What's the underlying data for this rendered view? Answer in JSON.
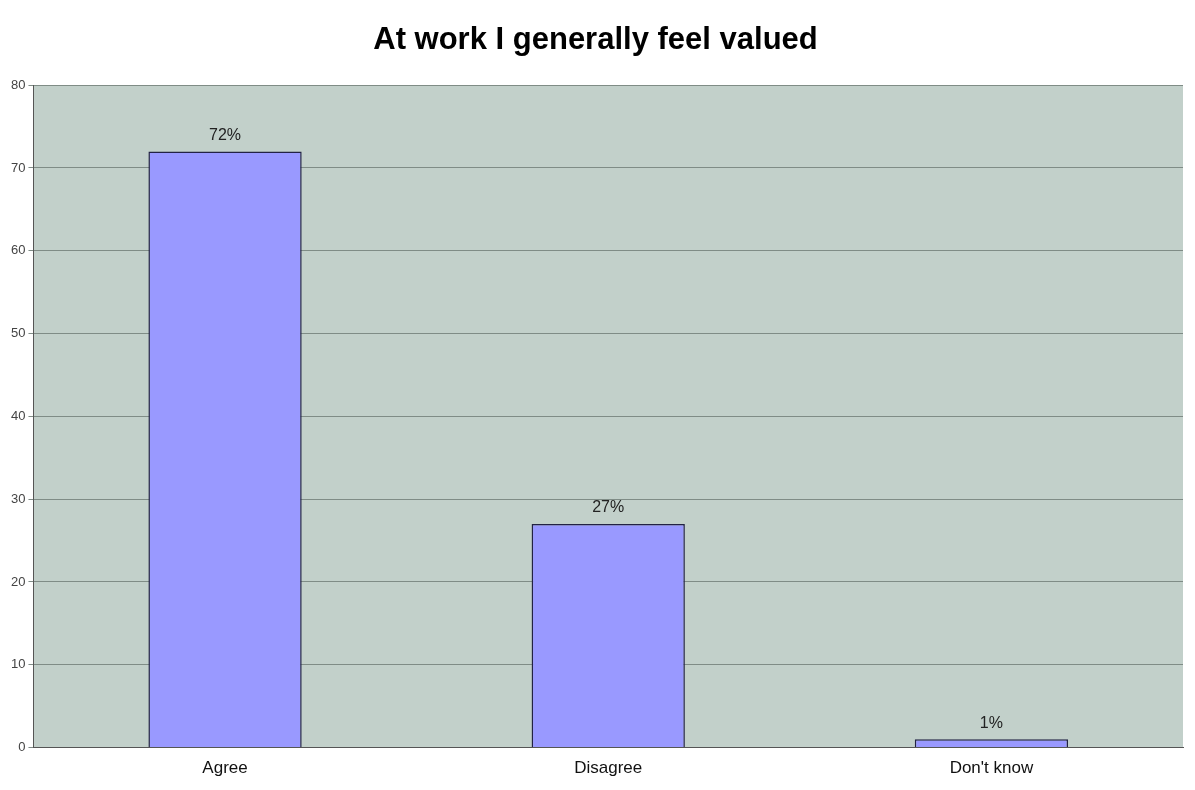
{
  "chart_data": {
    "type": "bar",
    "title": "At work I generally feel valued",
    "categories": [
      "Agree",
      "Disagree",
      "Don't know"
    ],
    "values": [
      72,
      27,
      1
    ],
    "value_labels": [
      "72%",
      "27%",
      "1%"
    ],
    "color": "#9999ff",
    "ylim": [
      0,
      80
    ],
    "yticks": [
      0,
      10,
      20,
      30,
      40,
      50,
      60,
      70,
      80
    ],
    "grid": "y",
    "legend": false
  }
}
